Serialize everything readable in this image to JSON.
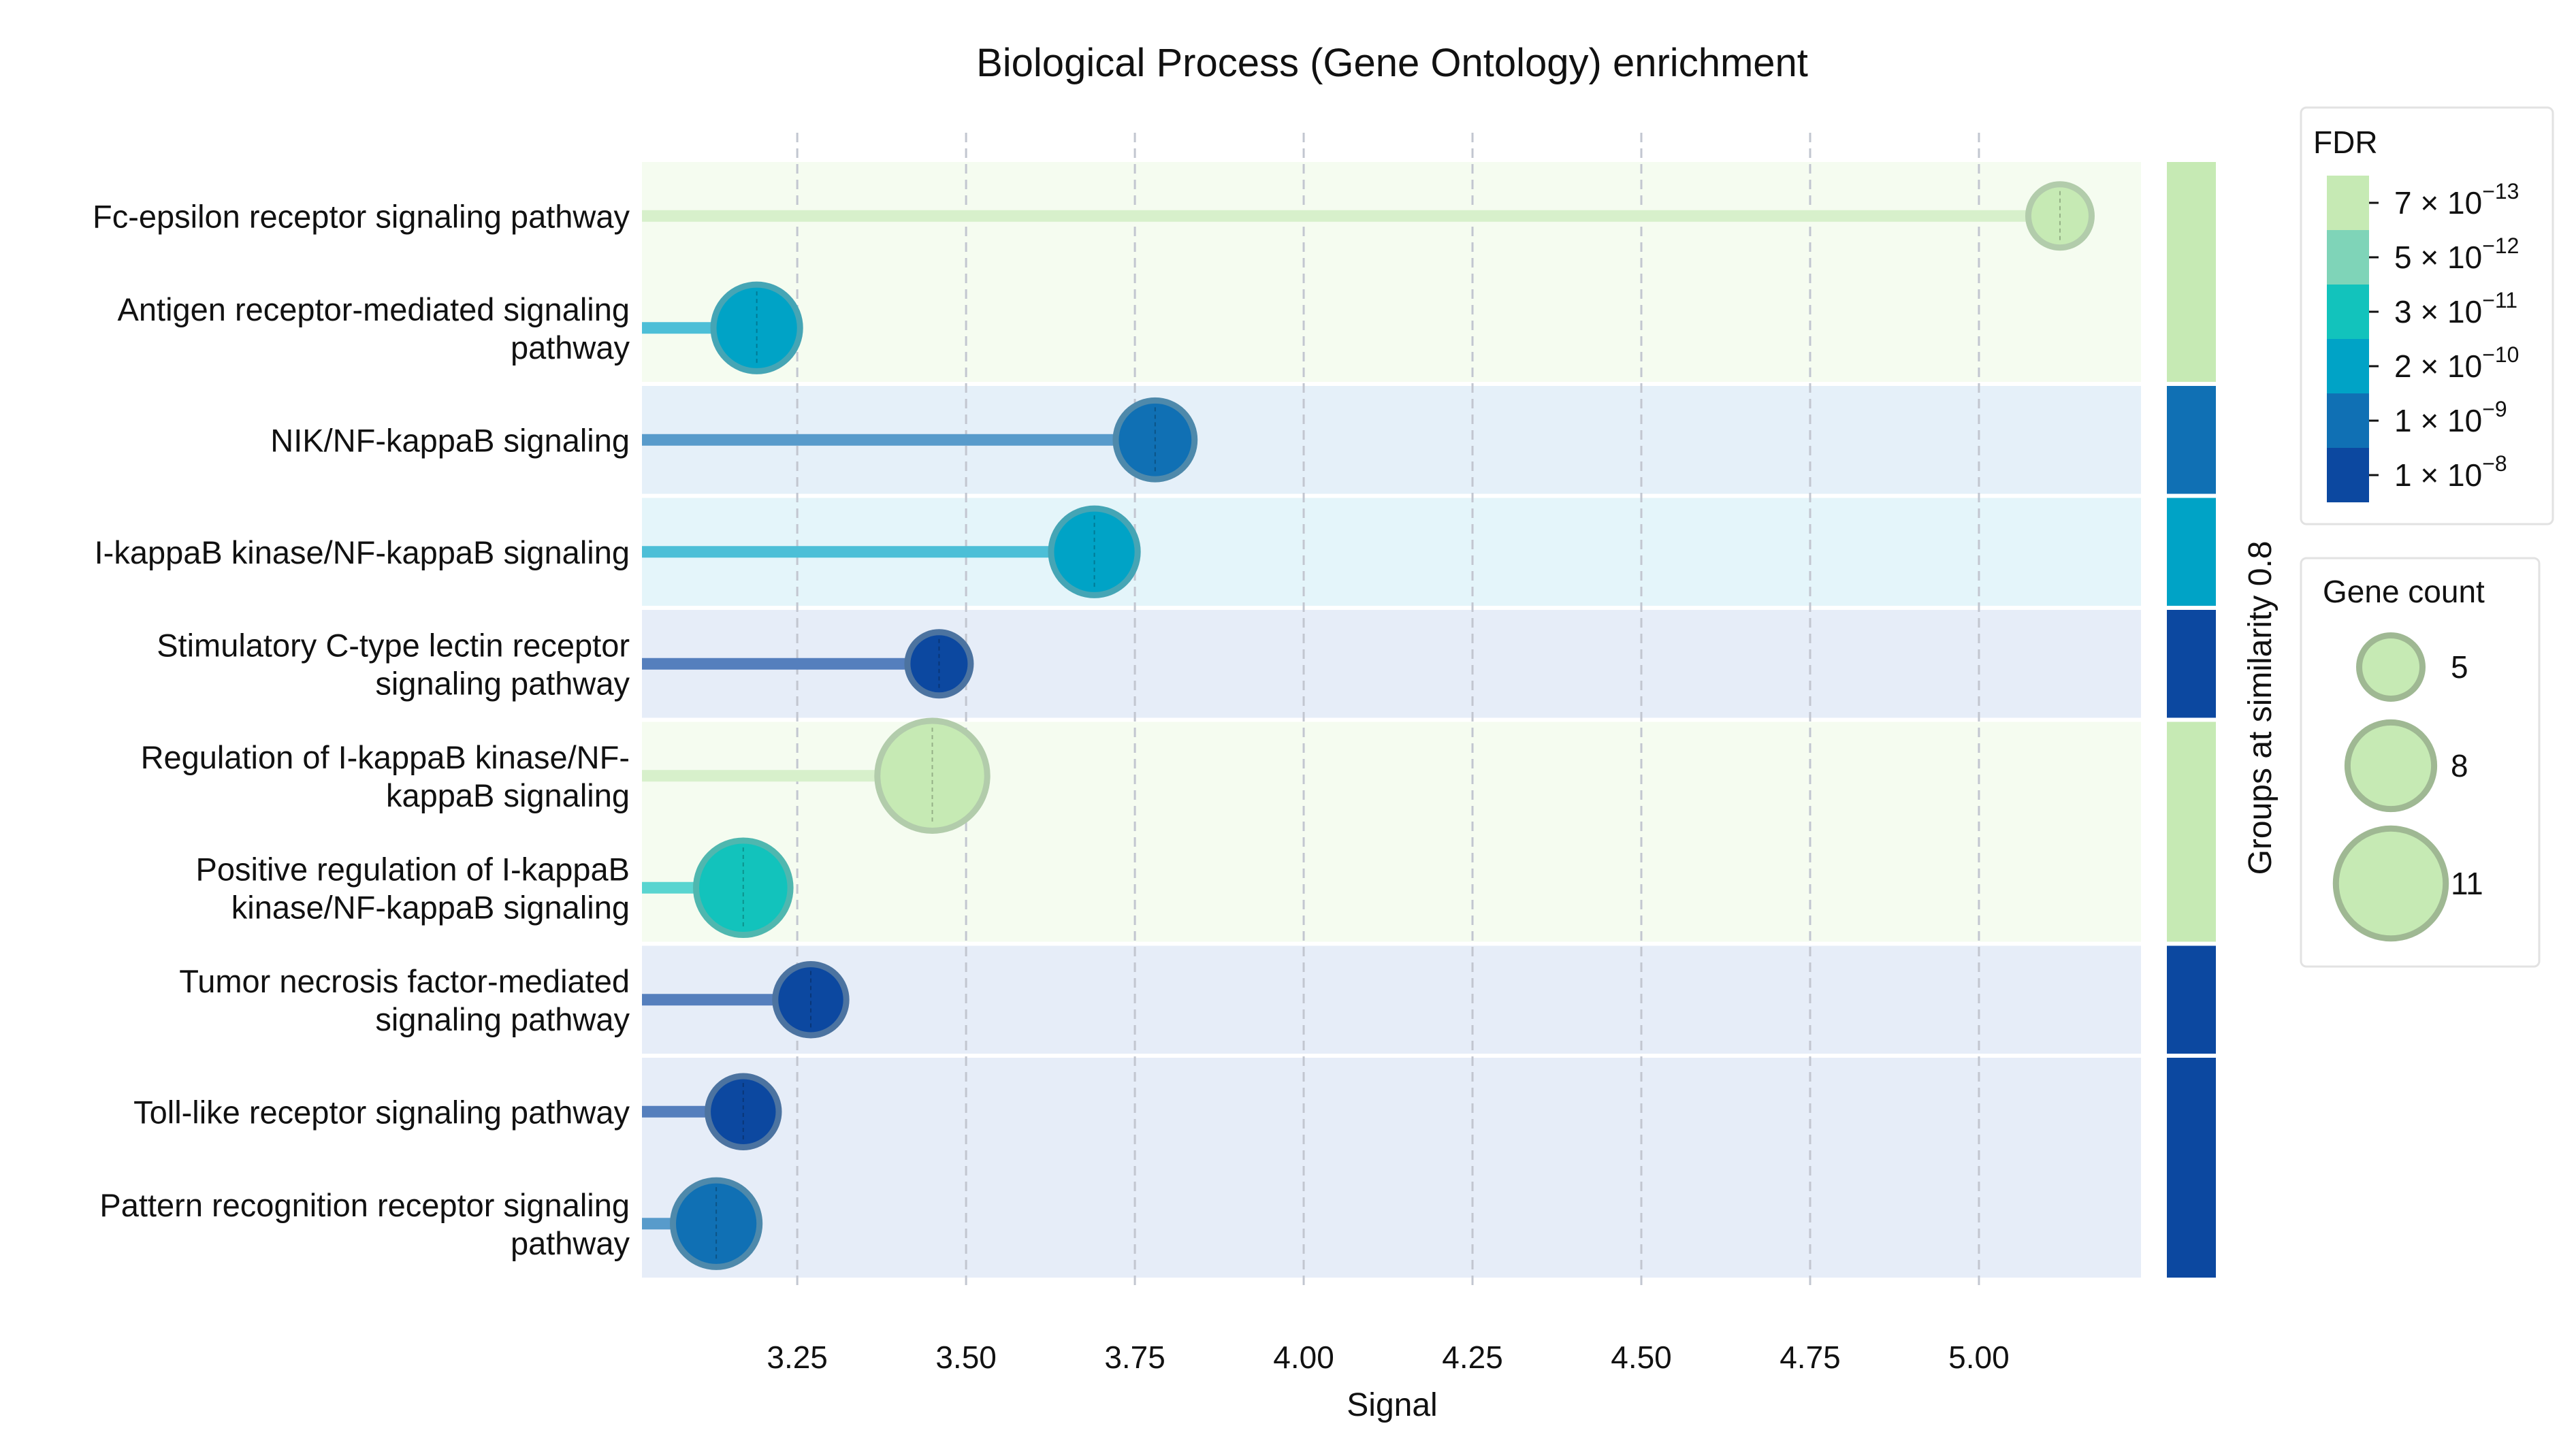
{
  "chart_data": {
    "type": "lollipop",
    "title": "Biological Process (Gene Ontology) enrichment",
    "xlabel": "Signal",
    "xlim": [
      3.02,
      5.24
    ],
    "xticks": [
      "3.25",
      "3.50",
      "3.75",
      "4.00",
      "4.25",
      "4.50",
      "4.75",
      "5.00"
    ],
    "xtick_values": [
      3.25,
      3.5,
      3.75,
      4.0,
      4.25,
      4.5,
      4.75,
      5.0
    ],
    "grid": true,
    "group_axis_label": "Groups at similarity 0.8",
    "terms": [
      {
        "lines": [
          "Fc-epsilon receptor signaling pathway"
        ],
        "signal": 5.12,
        "gene_count": 5,
        "fdr": "7e-13",
        "group": 0
      },
      {
        "lines": [
          "Antigen receptor-mediated signaling",
          "pathway"
        ],
        "signal": 3.19,
        "gene_count": 8,
        "fdr": "2e-10",
        "group": 0
      },
      {
        "lines": [
          "NIK/NF-kappaB signaling"
        ],
        "signal": 3.78,
        "gene_count": 7,
        "fdr": "1e-9",
        "group": 1
      },
      {
        "lines": [
          "I-kappaB kinase/NF-kappaB signaling"
        ],
        "signal": 3.69,
        "gene_count": 8,
        "fdr": "2e-10",
        "group": 2
      },
      {
        "lines": [
          "Stimulatory C-type lectin receptor",
          "signaling pathway"
        ],
        "signal": 3.46,
        "gene_count": 5,
        "fdr": "1e-8",
        "group": 3
      },
      {
        "lines": [
          "Regulation of I-kappaB kinase/NF-",
          "kappaB signaling"
        ],
        "signal": 3.45,
        "gene_count": 11,
        "fdr": "7e-13",
        "group": 4
      },
      {
        "lines": [
          "Positive regulation of I-kappaB",
          "kinase/NF-kappaB signaling"
        ],
        "signal": 3.17,
        "gene_count": 9,
        "fdr": "3e-11",
        "group": 4
      },
      {
        "lines": [
          "Tumor necrosis factor-mediated",
          "signaling pathway"
        ],
        "signal": 3.27,
        "gene_count": 6,
        "fdr": "1e-8",
        "group": 5
      },
      {
        "lines": [
          "Toll-like receptor signaling pathway"
        ],
        "signal": 3.17,
        "gene_count": 6,
        "fdr": "1e-8",
        "group": 6
      },
      {
        "lines": [
          "Pattern recognition receptor signaling",
          "pathway"
        ],
        "signal": 3.13,
        "gene_count": 8,
        "fdr": "1e-9",
        "group": 6
      }
    ],
    "groups": [
      {
        "rows": [
          0,
          1
        ],
        "color": "#c6eab4"
      },
      {
        "rows": [
          2
        ],
        "color": "#1070b4"
      },
      {
        "rows": [
          3
        ],
        "color": "#00a3c6"
      },
      {
        "rows": [
          4
        ],
        "color": "#0c48a0"
      },
      {
        "rows": [
          5,
          6
        ],
        "color": "#c6eab4"
      },
      {
        "rows": [
          7
        ],
        "color": "#0c48a0"
      },
      {
        "rows": [
          8,
          9
        ],
        "color": "#0c48a0"
      }
    ],
    "fdr_legend": {
      "title": "FDR",
      "entries": [
        {
          "mantissa": "7",
          "exponent": "−13",
          "color": "#c6eab4"
        },
        {
          "mantissa": "5",
          "exponent": "−12",
          "color": "#7fd4b8"
        },
        {
          "mantissa": "3",
          "exponent": "−11",
          "color": "#12c3bc"
        },
        {
          "mantissa": "2",
          "exponent": "−10",
          "color": "#00a3c6"
        },
        {
          "mantissa": "1",
          "exponent": "−9",
          "color": "#1070b4"
        },
        {
          "mantissa": "1",
          "exponent": "−8",
          "color": "#0c48a0"
        }
      ]
    },
    "size_legend": {
      "title": "Gene count",
      "entries": [
        5,
        8,
        11
      ]
    },
    "fdr_colors": {
      "7e-13": "#c6eab4",
      "5e-12": "#7fd4b8",
      "3e-11": "#12c3bc",
      "2e-10": "#00a3c6",
      "1e-9": "#1070b4",
      "1e-8": "#0c48a0"
    },
    "background_tints": {
      "#c6eab4": "#f5fcf0",
      "#1070b4": "#e5f0f9",
      "#00a3c6": "#e4f5fa",
      "#0c48a0": "#e6edf8"
    }
  }
}
